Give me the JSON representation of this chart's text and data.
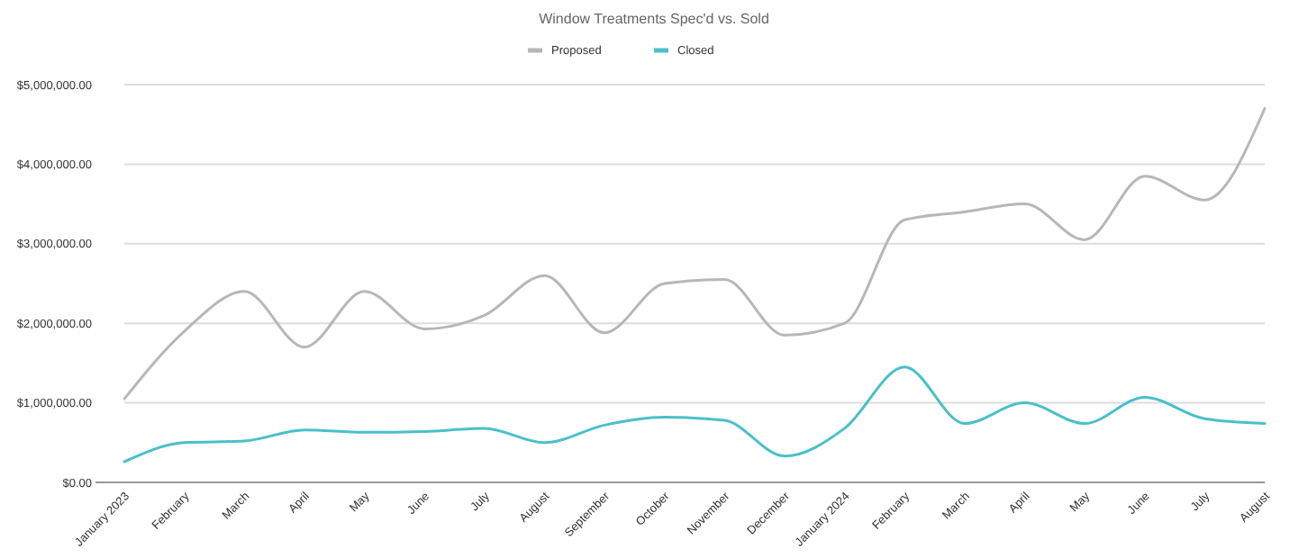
{
  "chart_data": {
    "type": "line",
    "title": "Window Treatments Spec'd vs. Sold",
    "categories": [
      "January 2023",
      "February",
      "March",
      "April",
      "May",
      "June",
      "July",
      "August",
      "September",
      "October",
      "November",
      "December",
      "January 2024",
      "February",
      "March",
      "April",
      "May",
      "June",
      "July",
      "August"
    ],
    "series": [
      {
        "name": "Proposed",
        "color": "#b7b7b7",
        "values": [
          1050000,
          1900000,
          2400000,
          1700000,
          2400000,
          1930000,
          2100000,
          2600000,
          1880000,
          2500000,
          2550000,
          1850000,
          2000000,
          3300000,
          3400000,
          3500000,
          3050000,
          3850000,
          3550000,
          4700000
        ]
      },
      {
        "name": "Closed",
        "color": "#4bbfca",
        "values": [
          260000,
          500000,
          520000,
          660000,
          630000,
          640000,
          680000,
          500000,
          720000,
          820000,
          780000,
          330000,
          680000,
          1450000,
          740000,
          1000000,
          740000,
          1070000,
          800000,
          740000
        ]
      }
    ],
    "ylim": [
      0,
      5000000
    ],
    "yticks": [
      {
        "value": 0,
        "label": "$0.00"
      },
      {
        "value": 1000000,
        "label": "$1,000,000.00"
      },
      {
        "value": 2000000,
        "label": "$2,000,000.00"
      },
      {
        "value": 3000000,
        "label": "$3,000,000.00"
      },
      {
        "value": 4000000,
        "label": "$4,000,000.00"
      },
      {
        "value": 5000000,
        "label": "$5,000,000.00"
      }
    ],
    "grid": "y",
    "legend": "top",
    "marker": "none",
    "line_style": "solid"
  }
}
